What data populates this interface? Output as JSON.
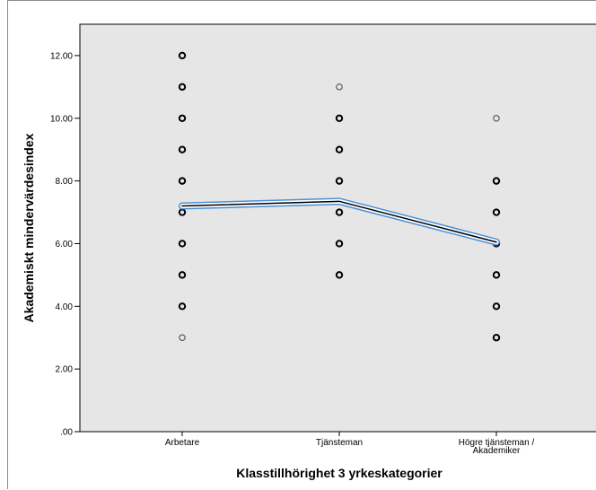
{
  "chart_data": {
    "type": "scatter",
    "xlabel": "Klasstillhörighet 3 yrkeskategorier",
    "ylabel": "Akademiskt mindervärdesindex",
    "ylim": [
      0,
      13.0
    ],
    "yticks": [
      {
        "value": 0,
        "label": ".00"
      },
      {
        "value": 2,
        "label": "2.00"
      },
      {
        "value": 4,
        "label": "4.00"
      },
      {
        "value": 6,
        "label": "6.00"
      },
      {
        "value": 8,
        "label": "8.00"
      },
      {
        "value": 10,
        "label": "10.00"
      },
      {
        "value": 12,
        "label": "12.00"
      }
    ],
    "categories": [
      [
        "Arbetare"
      ],
      [
        "Tjänsteman"
      ],
      [
        "Högre tjänsteman /",
        "Akademiker"
      ]
    ],
    "series": [
      {
        "type": "scatter",
        "points": [
          {
            "category": 0,
            "values": [
              12,
              11,
              10,
              9,
              8,
              7,
              6,
              5,
              4,
              3
            ]
          },
          {
            "category": 1,
            "values": [
              11,
              10,
              9,
              8,
              7,
              6,
              5
            ]
          },
          {
            "category": 2,
            "values": [
              10,
              8,
              7,
              6,
              5,
              4,
              3
            ]
          }
        ],
        "marker_weight": {
          "0": {
            "12": "bold",
            "11": "bold",
            "10": "bold",
            "9": "bold",
            "8": "bold",
            "7": "bold",
            "6": "bold",
            "5": "bold",
            "4": "bold",
            "3": "light"
          },
          "1": {
            "11": "light",
            "10": "bold",
            "9": "bold",
            "8": "bold",
            "7": "bold",
            "6": "bold",
            "5": "bold"
          },
          "2": {
            "10": "light",
            "8": "bold",
            "7": "bold",
            "6": "bold",
            "5": "bold",
            "4": "bold",
            "3": "bold"
          }
        }
      },
      {
        "type": "line",
        "values": [
          7.2,
          7.35,
          6.05
        ],
        "color": "#000000",
        "highlight": "#4a90d9"
      }
    ],
    "grid": false,
    "plot_background": "#e6e6e6"
  }
}
